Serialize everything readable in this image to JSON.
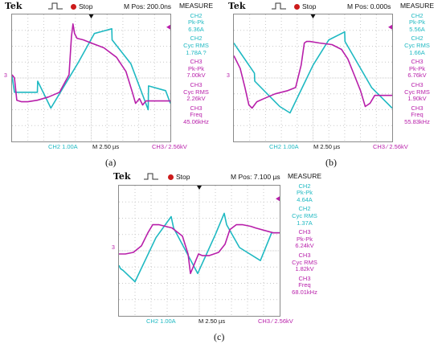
{
  "panels": [
    {
      "caption": "(a)",
      "brand": "Tek",
      "status": "Stop",
      "mpos": "M Pos: 200.0ns",
      "measure_title": "MEASURE",
      "measurements": [
        {
          "ch": "CH2",
          "name": "Pk-Pk",
          "value": "6.36A"
        },
        {
          "ch": "CH2",
          "name": "Cyc RMS",
          "value": "1.78A ?"
        },
        {
          "ch": "CH3",
          "name": "Pk-Pk",
          "value": "7.00kV"
        },
        {
          "ch": "CH3",
          "name": "Cyc RMS",
          "value": "2.26kV"
        },
        {
          "ch": "CH3",
          "name": "Freq",
          "value": "45.06kHz"
        }
      ],
      "ch2_scale": "CH2  1.00A",
      "timebase": "M 2.50 µs",
      "ch3_trigger": "CH3 ∕ 2.56kV",
      "level_marker": "3"
    },
    {
      "caption": "(b)",
      "brand": "Tek",
      "status": "Stop",
      "mpos": "M Pos: 0.000s",
      "measure_title": "MEASURE",
      "measurements": [
        {
          "ch": "CH2",
          "name": "Pk-Pk",
          "value": "5.56A"
        },
        {
          "ch": "CH2",
          "name": "Cyc RMS",
          "value": "1.66A"
        },
        {
          "ch": "CH3",
          "name": "Pk-Pk",
          "value": "6.76kV"
        },
        {
          "ch": "CH3",
          "name": "Cyc RMS",
          "value": "1.90kV"
        },
        {
          "ch": "CH3",
          "name": "Freq",
          "value": "55.83kHz"
        }
      ],
      "ch2_scale": "CH2  1.00A",
      "timebase": "M 2.50 µs",
      "ch3_trigger": "CH3 ∕ 2.56kV",
      "level_marker": "3"
    },
    {
      "caption": "(c)",
      "brand": "Tek",
      "status": "Stop",
      "mpos": "M Pos: 7.100 µs",
      "measure_title": "MEASURE",
      "measurements": [
        {
          "ch": "CH2",
          "name": "Pk-Pk",
          "value": "4.64A"
        },
        {
          "ch": "CH2",
          "name": "Cyc RMS",
          "value": "1.37A"
        },
        {
          "ch": "CH3",
          "name": "Pk-Pk",
          "value": "6.24kV"
        },
        {
          "ch": "CH3",
          "name": "Cyc RMS",
          "value": "1.82kV"
        },
        {
          "ch": "CH3",
          "name": "Freq",
          "value": "68.01kHz"
        }
      ],
      "ch2_scale": "CH2  1.00A",
      "timebase": "M 2.50 µs",
      "ch3_trigger": "CH3 ∕ 2.56kV",
      "level_marker": "3"
    }
  ],
  "colors": {
    "ch2": "#1fb9c2",
    "ch3": "#b81faa",
    "grid": "#c9c9c9",
    "stop": "#cc1b1b"
  },
  "chart_data": [
    {
      "type": "line",
      "panel": "(a)",
      "xlim": [
        0,
        10
      ],
      "ylim": [
        -4,
        4
      ],
      "series": [
        {
          "channel": "CH2",
          "x": [
            0,
            0.15,
            1.6,
            1.62,
            2.45,
            4.2,
            5.2,
            6.3,
            6.32,
            7.5,
            8.6,
            8.62,
            9.7,
            10
          ],
          "y": [
            0.1,
            -0.9,
            -0.9,
            -0.2,
            -1.9,
            1.0,
            2.8,
            3.1,
            2.4,
            0.9,
            -2.0,
            -0.5,
            -0.8,
            -1.6
          ]
        },
        {
          "channel": "CH3",
          "x": [
            0,
            0.15,
            0.3,
            0.6,
            1.0,
            1.6,
            2.3,
            3.0,
            3.6,
            3.75,
            3.85,
            3.95,
            4.1,
            4.5,
            5.0,
            5.8,
            6.6,
            7.2,
            7.6,
            7.8,
            8.05,
            8.25,
            8.45,
            10
          ],
          "y": [
            0.2,
            0.0,
            -1.4,
            -1.5,
            -1.5,
            -1.4,
            -1.2,
            -0.9,
            0.2,
            2.6,
            3.4,
            2.8,
            2.5,
            2.4,
            2.2,
            1.9,
            1.3,
            0.4,
            -0.9,
            -1.6,
            -1.3,
            -1.7,
            -1.45,
            -1.45
          ]
        }
      ]
    },
    {
      "type": "line",
      "panel": "(b)",
      "xlim": [
        0,
        10
      ],
      "ylim": [
        -4,
        4
      ],
      "series": [
        {
          "channel": "CH2",
          "x": [
            0,
            0.2,
            1.3,
            1.32,
            2.9,
            3.55,
            5.0,
            6.0,
            7.0,
            7.02,
            8.7,
            10
          ],
          "y": [
            2.2,
            1.9,
            0.3,
            -0.2,
            -1.8,
            -2.2,
            0.8,
            2.4,
            2.9,
            2.3,
            -0.6,
            -1.9
          ]
        },
        {
          "channel": "CH3",
          "x": [
            0,
            0.4,
            0.7,
            0.95,
            1.15,
            1.45,
            1.9,
            2.6,
            3.4,
            3.9,
            4.25,
            4.45,
            4.6,
            4.8,
            5.4,
            6.2,
            6.8,
            7.2,
            7.6,
            8.0,
            8.3,
            8.6,
            8.9,
            10
          ],
          "y": [
            1.4,
            0.6,
            -0.6,
            -1.7,
            -1.9,
            -1.5,
            -1.3,
            -1.0,
            -0.8,
            -0.6,
            0.8,
            2.2,
            2.3,
            2.3,
            2.2,
            2.1,
            1.8,
            1.2,
            0.2,
            -0.8,
            -1.8,
            -1.6,
            -1.1,
            -1.1
          ]
        }
      ]
    },
    {
      "type": "line",
      "panel": "(c)",
      "xlim": [
        0,
        10
      ],
      "ylim": [
        -4,
        4
      ],
      "series": [
        {
          "channel": "CH2",
          "x": [
            0,
            0.1,
            0.25,
            1.0,
            2.3,
            3.25,
            3.4,
            4.1,
            4.9,
            6.0,
            6.55,
            6.7,
            7.5,
            8.8,
            9.5,
            10
          ],
          "y": [
            -0.9,
            -1.1,
            -1.2,
            -1.9,
            0.8,
            2.1,
            1.4,
            0.1,
            -1.4,
            1.0,
            2.3,
            1.6,
            0.2,
            -0.6,
            1.1,
            1.1
          ]
        },
        {
          "channel": "CH3",
          "x": [
            0,
            0.4,
            0.9,
            1.4,
            1.8,
            2.1,
            2.5,
            3.3,
            3.95,
            4.3,
            4.45,
            4.7,
            4.95,
            5.2,
            5.6,
            6.2,
            6.6,
            6.9,
            7.3,
            7.7,
            8.2,
            8.5,
            9.6,
            10
          ],
          "y": [
            -0.2,
            -0.2,
            -0.1,
            0.3,
            1.1,
            1.6,
            1.6,
            1.4,
            0.9,
            -0.2,
            -1.4,
            -0.8,
            -0.2,
            -0.3,
            -0.3,
            -0.1,
            0.4,
            1.3,
            1.6,
            1.6,
            1.5,
            1.4,
            1.1,
            1.1
          ]
        }
      ]
    }
  ]
}
